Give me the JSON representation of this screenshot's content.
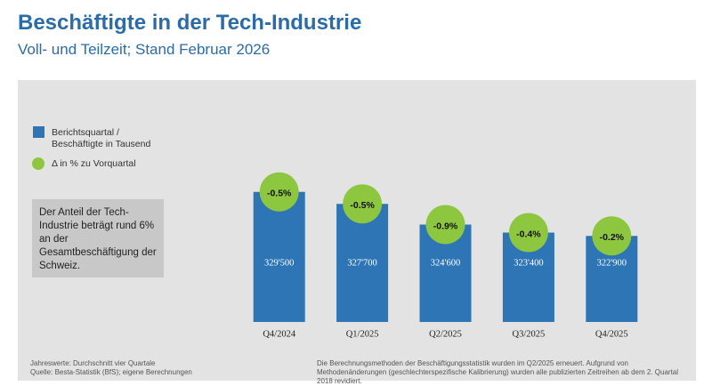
{
  "chart_data": {
    "type": "bar",
    "title": "Beschäftigte in der Tech-Industrie",
    "subtitle": "Voll- und Teilzeit; Stand Februar 2026",
    "categories": [
      "Q4/2024",
      "Q1/2025",
      "Q2/2025",
      "Q3/2025",
      "Q4/2025"
    ],
    "series": [
      {
        "name": "Berichtsquartal / Beschäftigte in Tausend",
        "color": "#2e75b6",
        "values": [
          329500,
          327700,
          324600,
          323400,
          322900
        ],
        "value_labels": [
          "329'500",
          "327'700",
          "324'600",
          "323'400",
          "322'900"
        ]
      },
      {
        "name": "Δ in % zu Vorquartal",
        "color": "#8dc63f",
        "values": [
          -0.5,
          -0.5,
          -0.9,
          -0.4,
          -0.2
        ],
        "value_labels": [
          "-0.5%",
          "-0.5%",
          "-0.9%",
          "-0.4%",
          "-0.2%"
        ]
      }
    ],
    "ylim": [
      310000,
      340000
    ],
    "annotation": "Der Anteil der Tech-Industrie beträgt rund 6% an der Gesamtbeschäftigung der Schweiz.",
    "source_notes": [
      "Jahreswerte: Durchschnitt vier Quartale",
      "Quelle: Besta-Statistik (BfS); eigene Berechnungen"
    ],
    "method_note": "Die Berechnungsmethoden der Beschäftigungsstatistik wurden im Q2/2025 erneuert. Aufgrund von Methodenänderungen (geschlechterspezifische Kalibrierung) wurden alle publizierten Zeitreihen ab dem 2. Quartal 2018 revidiert."
  }
}
